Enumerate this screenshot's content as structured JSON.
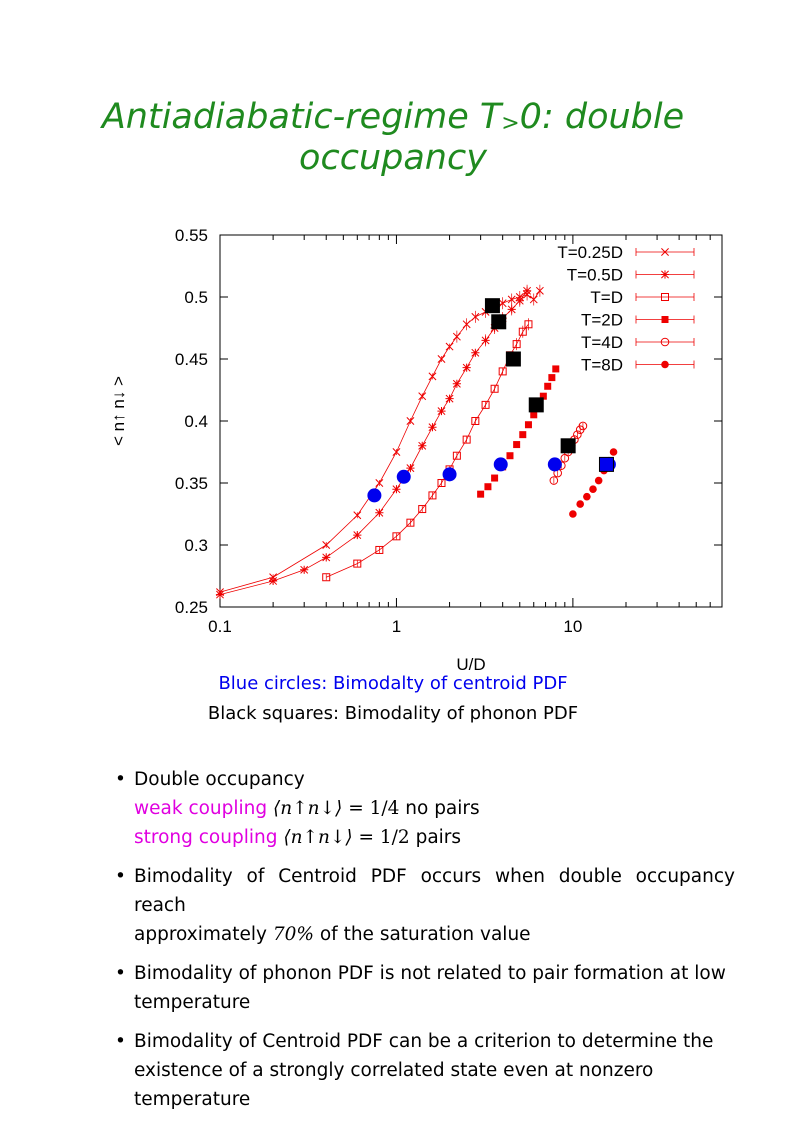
{
  "title": {
    "main": "Antiadiabatic-regime T",
    "subscript": ">",
    "rest": "0: double",
    "line2": "occupancy"
  },
  "chart_data": {
    "type": "scatter",
    "xscale": "log",
    "xlim": [
      0.1,
      70
    ],
    "ylim": [
      0.25,
      0.55
    ],
    "xlabel": "U/D",
    "ylabel": "< n↑ n↓ >",
    "xticks": [
      "0.1",
      "1",
      "10"
    ],
    "yticks": [
      "0.25",
      "0.3",
      "0.35",
      "0.4",
      "0.45",
      "0.5",
      "0.55"
    ],
    "legend_position": "top-right",
    "series": [
      {
        "name": "T=0.25D",
        "marker": "x",
        "line": true,
        "x": [
          0.1,
          0.2,
          0.4,
          0.6,
          0.8,
          1.0,
          1.2,
          1.4,
          1.6,
          1.8,
          2.0,
          2.2,
          2.5,
          2.8,
          3.2,
          3.6,
          4.0,
          4.5,
          5.0,
          5.5,
          6.0,
          6.5
        ],
        "y": [
          0.262,
          0.274,
          0.3,
          0.324,
          0.35,
          0.375,
          0.4,
          0.42,
          0.436,
          0.45,
          0.46,
          0.468,
          0.478,
          0.484,
          0.488,
          0.492,
          0.495,
          0.498,
          0.5,
          0.502,
          0.498,
          0.505
        ]
      },
      {
        "name": "T=0.5D",
        "marker": "*",
        "line": true,
        "x": [
          0.1,
          0.2,
          0.3,
          0.4,
          0.6,
          0.8,
          1.0,
          1.2,
          1.4,
          1.6,
          1.8,
          2.0,
          2.2,
          2.5,
          2.8,
          3.2,
          3.6,
          4.0,
          4.5,
          5.0,
          5.5
        ],
        "y": [
          0.26,
          0.271,
          0.28,
          0.29,
          0.308,
          0.326,
          0.345,
          0.362,
          0.38,
          0.395,
          0.408,
          0.418,
          0.43,
          0.443,
          0.455,
          0.465,
          0.475,
          0.483,
          0.49,
          0.497,
          0.505
        ]
      },
      {
        "name": "T=D",
        "marker": "square-open",
        "line": true,
        "x": [
          0.4,
          0.6,
          0.8,
          1.0,
          1.2,
          1.4,
          1.6,
          1.8,
          2.0,
          2.2,
          2.5,
          2.8,
          3.2,
          3.6,
          4.0,
          4.4,
          4.8,
          5.2,
          5.6
        ],
        "y": [
          0.274,
          0.285,
          0.296,
          0.307,
          0.318,
          0.329,
          0.34,
          0.35,
          0.361,
          0.372,
          0.385,
          0.4,
          0.413,
          0.426,
          0.44,
          0.453,
          0.462,
          0.472,
          0.478
        ]
      },
      {
        "name": "T=2D",
        "marker": "square-filled",
        "line": false,
        "x": [
          3.0,
          3.3,
          3.6,
          4.0,
          4.4,
          4.8,
          5.2,
          5.6,
          6.0,
          6.4,
          6.8,
          7.2,
          7.6,
          8.0
        ],
        "y": [
          0.341,
          0.347,
          0.354,
          0.363,
          0.372,
          0.381,
          0.389,
          0.397,
          0.405,
          0.413,
          0.42,
          0.428,
          0.435,
          0.442
        ]
      },
      {
        "name": "T=4D",
        "marker": "circle-open",
        "line": false,
        "x": [
          7.8,
          8.2,
          8.6,
          9.0,
          9.4,
          9.8,
          10.2,
          10.6,
          11.0,
          11.4
        ],
        "y": [
          0.352,
          0.358,
          0.364,
          0.37,
          0.375,
          0.38,
          0.385,
          0.389,
          0.393,
          0.396
        ]
      },
      {
        "name": "T=8D",
        "marker": "circle-filled",
        "line": false,
        "x": [
          10.0,
          11.0,
          12.0,
          13.0,
          14.0,
          15.0,
          16.0,
          17.0
        ],
        "y": [
          0.325,
          0.333,
          0.339,
          0.345,
          0.352,
          0.36,
          0.368,
          0.375
        ]
      }
    ],
    "annotations": {
      "blue_circles": {
        "x": [
          0.75,
          1.1,
          2.0,
          3.9,
          7.9,
          16.0
        ],
        "y": [
          0.34,
          0.355,
          0.357,
          0.365,
          0.365,
          0.365
        ]
      },
      "black_squares": {
        "x": [
          3.5,
          3.8,
          4.6,
          6.2,
          9.4,
          15.5
        ],
        "y": [
          0.493,
          0.48,
          0.45,
          0.413,
          0.38,
          0.365
        ]
      }
    },
    "colors": {
      "series": "#ee0000",
      "blue": "#0000ee",
      "black": "#000000"
    }
  },
  "captions": {
    "blue": "Blue circles: Bimodalty of centroid PDF",
    "black": "Black squares: Bimodality of phonon PDF"
  },
  "bullets": {
    "b1": "Double occupancy",
    "weak_label": "weak coupling",
    "weak_eq_val": "1/4",
    "weak_tail": "no pairs",
    "strong_label": "strong coupling",
    "strong_eq_val": "1/2",
    "strong_tail": "pairs",
    "b2_l1": "Bimodality of Centroid PDF occurs when double occupancy reach",
    "b2_l2a": "approximately",
    "b2_pct": "70%",
    "b2_l2b": "of the saturation value",
    "b3_l1": "Bimodality of phonon PDF is not related to pair formation at low",
    "b3_l2": "temperature",
    "b4_l1": "Bimodality of Centroid PDF can be a criterion to determine the",
    "b4_l2": "existence of a strongly correlated state even at nonzero temperature",
    "dot": "•",
    "eq_sym": "⟨n↑n↓⟩ ="
  }
}
